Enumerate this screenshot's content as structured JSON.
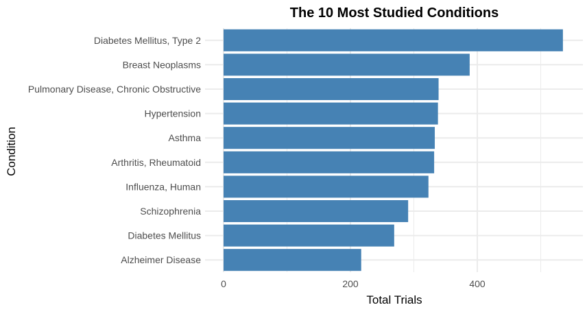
{
  "chart_data": {
    "type": "bar",
    "orientation": "horizontal",
    "title": "The 10 Most Studied Conditions",
    "xlabel": "Total Trials",
    "ylabel": "Condition",
    "categories": [
      "Diabetes Mellitus, Type 2",
      "Breast Neoplasms",
      "Pulmonary Disease, Chronic Obstructive",
      "Hypertension",
      "Asthma",
      "Arthritis, Rheumatoid",
      "Influenza, Human",
      "Schizophrenia",
      "Diabetes Mellitus",
      "Alzheimer Disease"
    ],
    "values": [
      535,
      388,
      339,
      338,
      333,
      332,
      323,
      291,
      269,
      217
    ],
    "xlim": [
      0,
      565
    ],
    "x_ticks": [
      0,
      200,
      400
    ],
    "x_tick_labels": [
      "0",
      "200",
      "400"
    ],
    "bar_color": "#4682b4",
    "grid": true,
    "grid_color": "#ebebeb",
    "legend": "none"
  }
}
